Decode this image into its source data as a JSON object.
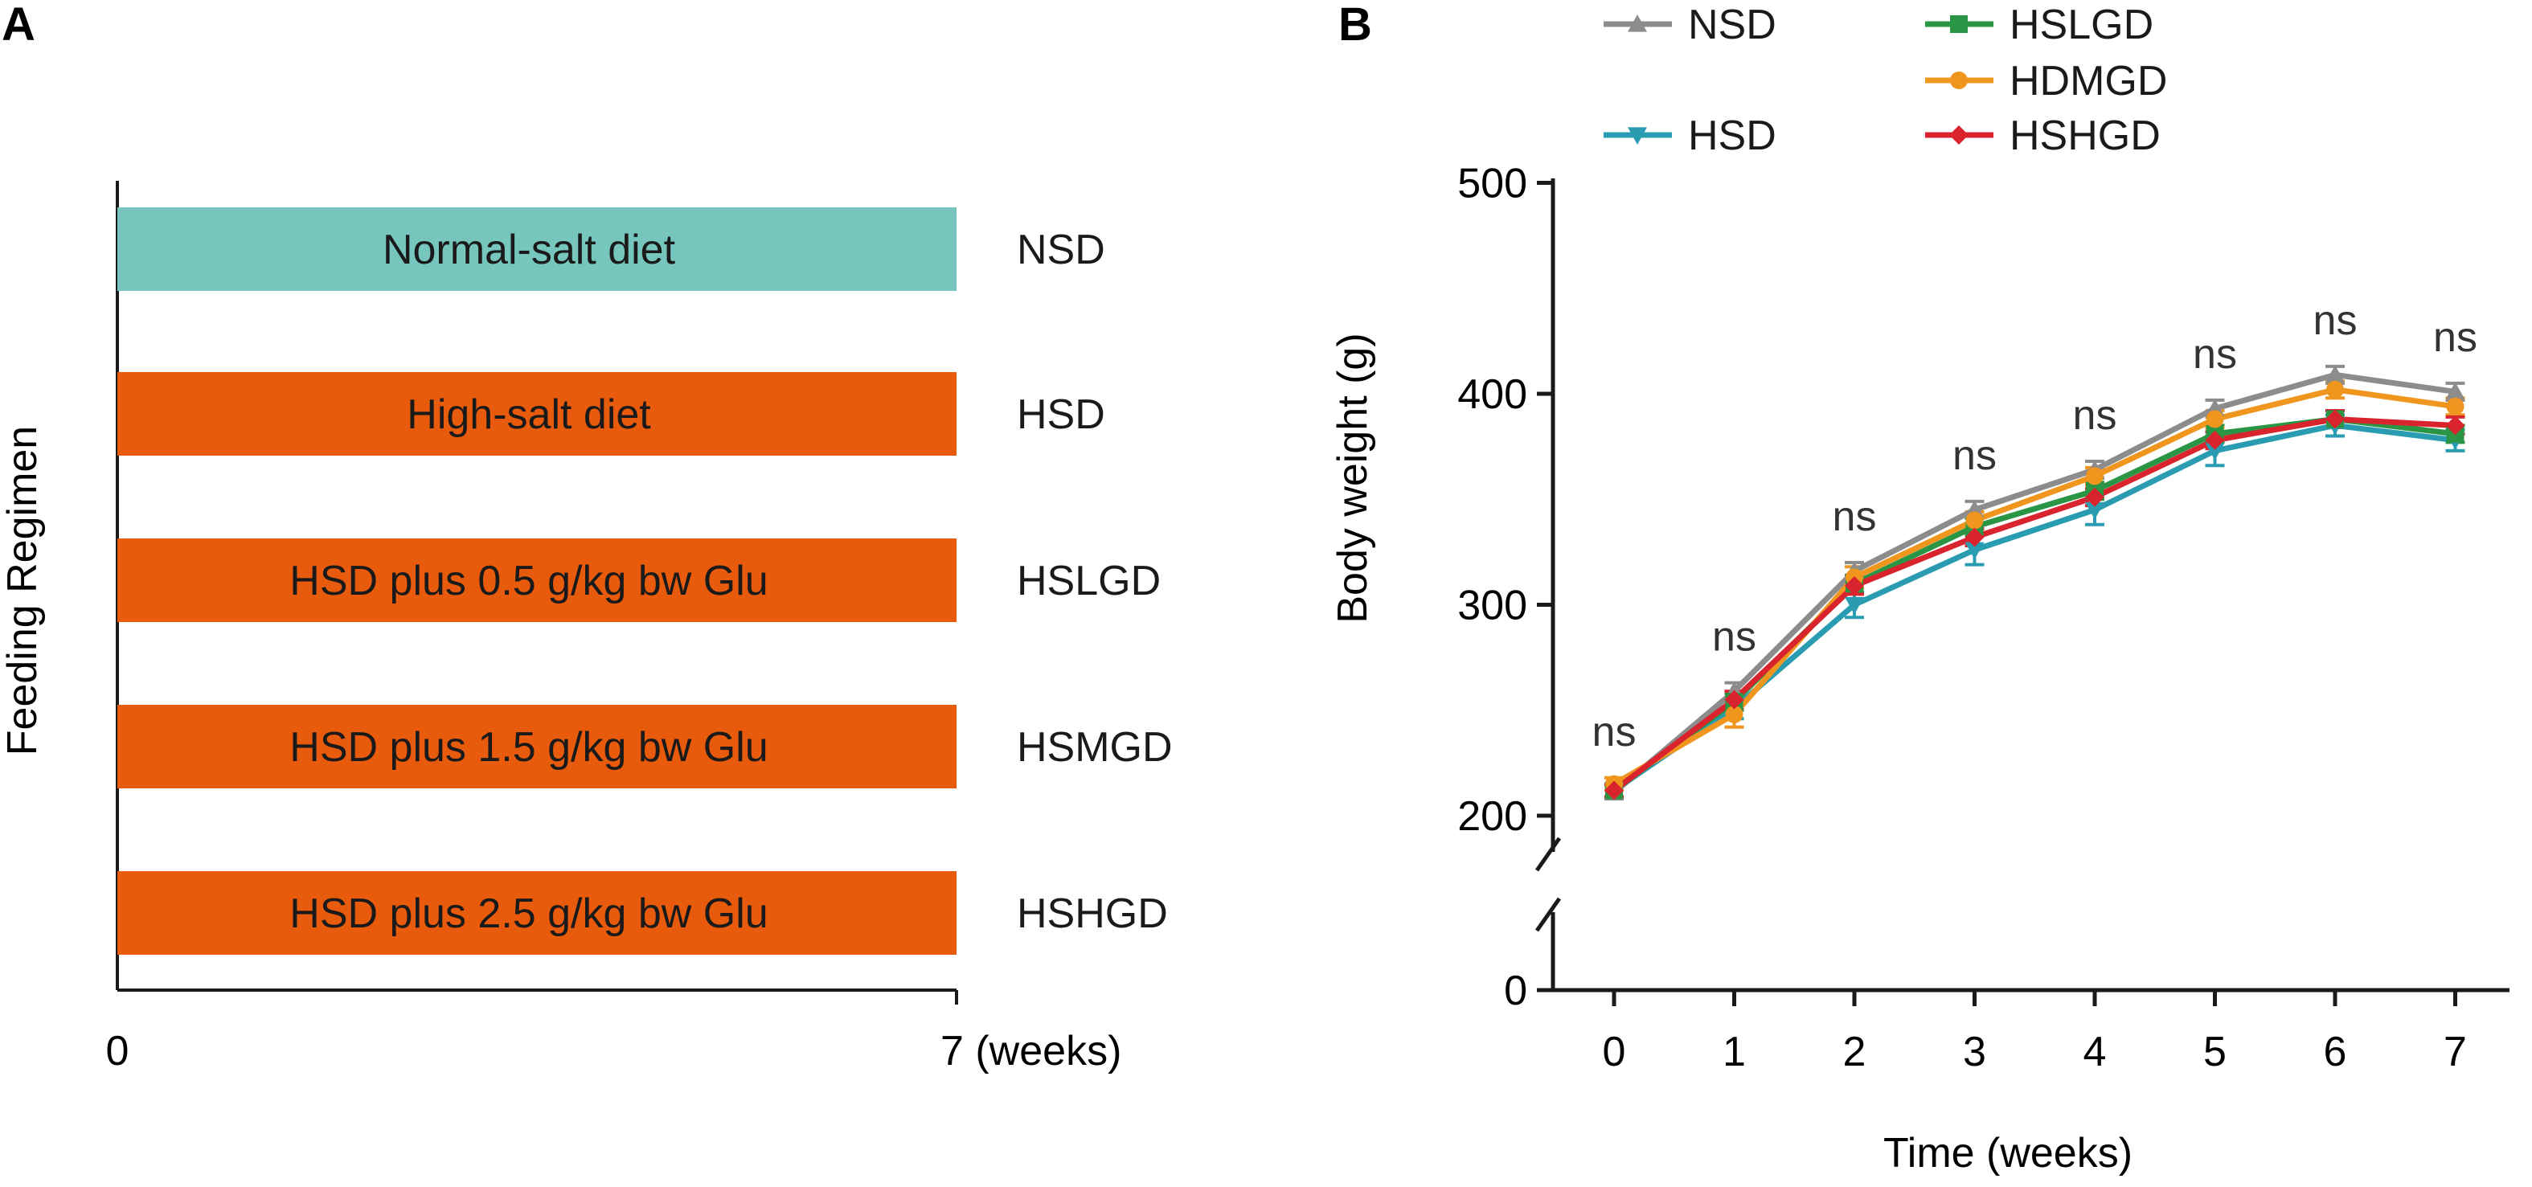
{
  "panels": {
    "a_label": "A",
    "b_label": "B"
  },
  "chart_data": [
    {
      "type": "gantt",
      "ylabel": "Feeding Regimen",
      "x_ticks": [
        "0",
        "7 (weeks)"
      ],
      "xlim": [
        0,
        7
      ],
      "bars": [
        {
          "label": "Normal-salt diet",
          "group": "NSD",
          "start": 0,
          "end": 7,
          "color": "#76c6bd"
        },
        {
          "label": "High-salt diet",
          "group": "HSD",
          "start": 0,
          "end": 7,
          "color": "#e85a0c"
        },
        {
          "label": "HSD plus 0.5 g/kg bw Glu",
          "group": "HSLGD",
          "start": 0,
          "end": 7,
          "color": "#e85a0c"
        },
        {
          "label": "HSD plus 1.5 g/kg bw Glu",
          "group": "HSMGD",
          "start": 0,
          "end": 7,
          "color": "#e85a0c"
        },
        {
          "label": "HSD plus 2.5 g/kg bw Glu",
          "group": "HSHGD",
          "start": 0,
          "end": 7,
          "color": "#e85a0c"
        }
      ]
    },
    {
      "type": "line",
      "xlabel": "Time (weeks)",
      "ylabel": "Body weight (g)",
      "x": [
        0,
        1,
        2,
        3,
        4,
        5,
        6,
        7
      ],
      "x_ticks": [
        "0",
        "1",
        "2",
        "3",
        "4",
        "5",
        "6",
        "7"
      ],
      "y_ticks": [
        {
          "value": 0,
          "label": "0"
        },
        {
          "value": 200,
          "label": "200"
        },
        {
          "value": 300,
          "label": "300"
        },
        {
          "value": 400,
          "label": "400"
        },
        {
          "value": 500,
          "label": "500"
        }
      ],
      "ylim": [
        0,
        500
      ],
      "y_axis_break": true,
      "series": [
        {
          "name": "NSD",
          "color": "#8c8c8c",
          "marker": "triangle-up",
          "values": [
            211,
            259,
            316,
            345,
            364,
            393,
            409,
            401
          ],
          "errors": [
            3,
            4,
            4,
            4,
            4,
            4,
            4,
            4
          ]
        },
        {
          "name": "HSD",
          "color": "#2a9cb2",
          "marker": "triangle-down",
          "values": [
            212,
            251,
            300,
            326,
            345,
            373,
            385,
            378
          ],
          "errors": [
            3,
            5,
            6,
            7,
            7,
            7,
            5,
            5
          ]
        },
        {
          "name": "HSLGD",
          "color": "#2a9545",
          "marker": "square",
          "values": [
            212,
            254,
            310,
            337,
            354,
            381,
            388,
            381
          ],
          "errors": [
            3,
            4,
            4,
            4,
            4,
            4,
            4,
            4
          ]
        },
        {
          "name": "HDMGD",
          "color": "#f0961f",
          "marker": "circle",
          "values": [
            215,
            248,
            313,
            340,
            361,
            388,
            402,
            394
          ],
          "errors": [
            3,
            6,
            5,
            4,
            4,
            4,
            4,
            4
          ]
        },
        {
          "name": "HSHGD",
          "color": "#d9232d",
          "marker": "diamond",
          "values": [
            212,
            255,
            309,
            332,
            351,
            378,
            388,
            385
          ],
          "errors": [
            3,
            4,
            4,
            4,
            4,
            4,
            4,
            4
          ]
        }
      ],
      "significance": [
        "ns",
        "ns",
        "ns",
        "ns",
        "ns",
        "ns",
        "ns",
        "ns"
      ]
    }
  ]
}
